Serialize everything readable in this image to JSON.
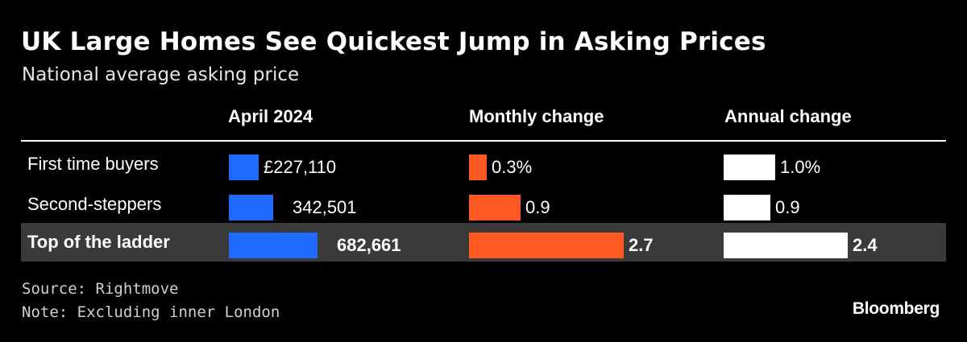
{
  "title": "UK Large Homes See Quickest Jump in Asking Prices",
  "subtitle": "National average asking price",
  "source": "Source: Rightmove",
  "note": "Note: Excluding inner London",
  "logo": "Bloomberg",
  "colors": {
    "price": "#1f6bff",
    "monthly": "#ff5a24",
    "annual": "#ffffff",
    "highlight_row": "#3a3a3a"
  },
  "chart_data": {
    "type": "table",
    "columns": [
      {
        "key": "price",
        "label": "April 2024"
      },
      {
        "key": "monthly",
        "label": "Monthly change"
      },
      {
        "key": "annual",
        "label": "Annual change"
      }
    ],
    "rows": [
      {
        "label": "First time buyers",
        "price": 227110,
        "price_label": "£227,110",
        "monthly": 0.3,
        "monthly_label": "0.3%",
        "annual": 1.0,
        "annual_label": "1.0%",
        "highlight": false
      },
      {
        "label": "Second-steppers",
        "price": 342501,
        "price_label": "342,501",
        "monthly": 0.9,
        "monthly_label": "0.9",
        "annual": 0.9,
        "annual_label": "0.9",
        "highlight": false
      },
      {
        "label": "Top of the ladder",
        "price": 682661,
        "price_label": "682,661",
        "monthly": 2.7,
        "monthly_label": "2.7",
        "annual": 2.4,
        "annual_label": "2.4",
        "highlight": true
      }
    ]
  }
}
